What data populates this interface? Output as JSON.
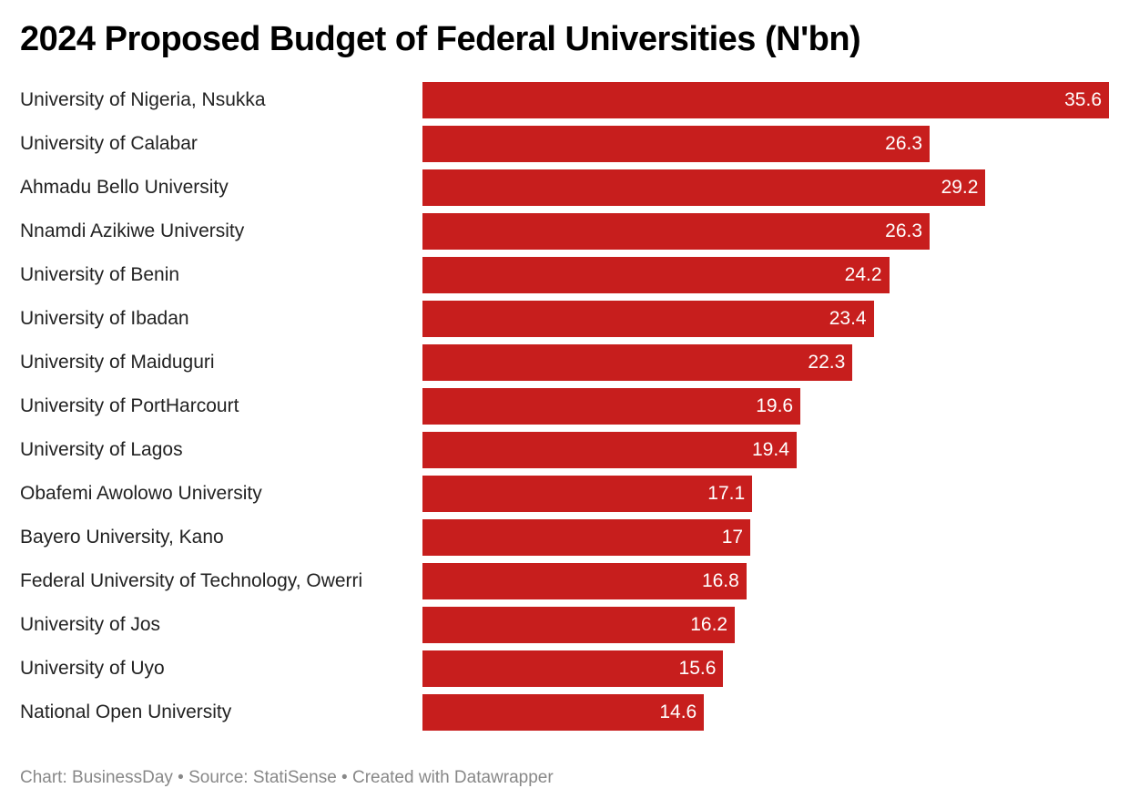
{
  "chart_data": {
    "type": "bar",
    "orientation": "horizontal",
    "title": "2024 Proposed Budget of Federal Universities (N'bn)",
    "categories": [
      "University of Nigeria, Nsukka",
      "University of Calabar",
      "Ahmadu Bello University",
      "Nnamdi Azikiwe University",
      "University of Benin",
      "University of Ibadan",
      "University of Maiduguri",
      "University of PortHarcourt",
      "University of Lagos",
      "Obafemi Awolowo University",
      "Bayero University, Kano",
      "Federal University of Technology, Owerri",
      "University of Jos",
      "University of Uyo",
      "National Open University"
    ],
    "values": [
      35.6,
      26.3,
      29.2,
      26.3,
      24.2,
      23.4,
      22.3,
      19.6,
      19.4,
      17.1,
      17,
      16.8,
      16.2,
      15.6,
      14.6
    ],
    "value_labels": [
      "35.6",
      "26.3",
      "29.2",
      "26.3",
      "24.2",
      "23.4",
      "22.3",
      "19.6",
      "19.4",
      "17.1",
      "17",
      "16.8",
      "16.2",
      "15.6",
      "14.6"
    ],
    "xlim": [
      0,
      35.6
    ],
    "grid": false,
    "bar_color": "#c71e1d",
    "footer": "Chart: BusinessDay • Source: StatiSense • Created with Datawrapper"
  }
}
